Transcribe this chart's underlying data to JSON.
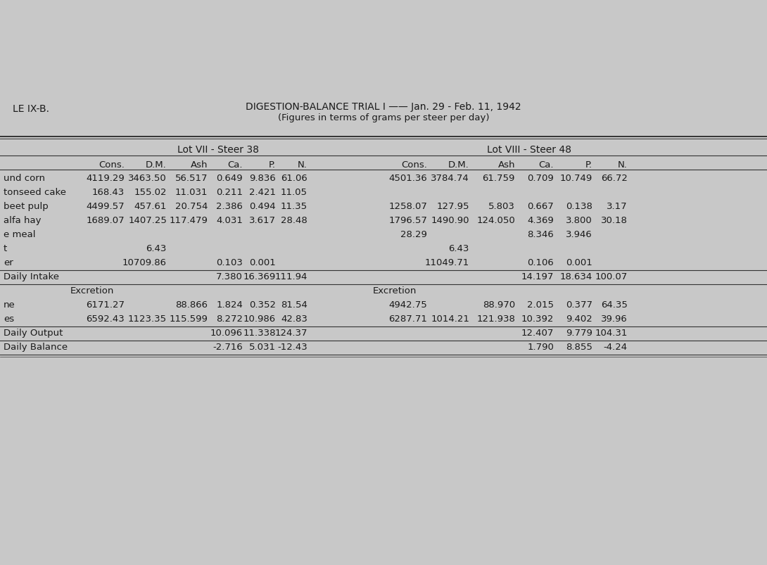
{
  "title_left": "LE IX-B.",
  "title_center": "DIGESTION-BALANCE TRIAL I —— Jan. 29 - Feb. 11, 1942",
  "title_sub": "(Figures in terms of grams per steer per day)",
  "lot7_header": "Lot VII - Steer 38",
  "lot8_header": "Lot VIII - Steer 48",
  "col_headers": [
    "Cons.",
    "D.M.",
    "Ash",
    "Ca.",
    "P.",
    "N."
  ],
  "bg_color": "#c8c8c8",
  "text_color": "#1a1a1a",
  "rows": [
    {
      "label": "und corn",
      "l7": [
        "4119.29",
        "3463.50",
        "56.517",
        "0.649",
        "9.836",
        "61.06"
      ],
      "l8": [
        "4501.36",
        "3784.74",
        "61.759",
        "0.709",
        "10.749",
        "66.72"
      ]
    },
    {
      "label": "tonseed cake",
      "l7": [
        "168.43",
        "155.02",
        "11.031",
        "0.211",
        "2.421",
        "11.05"
      ],
      "l8": [
        "",
        "",
        "",
        "",
        "",
        ""
      ]
    },
    {
      "label": "beet pulp",
      "l7": [
        "4499.57",
        "457.61",
        "20.754",
        "2.386",
        "0.494",
        "11.35"
      ],
      "l8": [
        "1258.07",
        "127.95",
        "5.803",
        "0.667",
        "0.138",
        "3.17"
      ]
    },
    {
      "label": "alfa hay",
      "l7": [
        "1689.07",
        "1407.25",
        "117.479",
        "4.031",
        "3.617",
        "28.48"
      ],
      "l8": [
        "1796.57",
        "1490.90",
        "124.050",
        "4.369",
        "3.800",
        "30.18"
      ]
    },
    {
      "label": "e meal",
      "l7": [
        "",
        "",
        "",
        "",
        "",
        ""
      ],
      "l8": [
        "28.29",
        "",
        "",
        "8.346",
        "3.946",
        ""
      ]
    },
    {
      "label": "t",
      "l7": [
        "",
        "6.43",
        "",
        "",
        "",
        ""
      ],
      "l8": [
        "",
        "6.43",
        "",
        "",
        "",
        ""
      ]
    },
    {
      "label": "er",
      "l7": [
        "",
        "10709.86",
        "",
        "0.103",
        "0.001",
        ""
      ],
      "l8": [
        "",
        "11049.71",
        "",
        "0.106",
        "0.001",
        ""
      ],
      "line_below": true
    },
    {
      "label": "Daily Intake",
      "l7": [
        "",
        "",
        "",
        "7.380",
        "16.369",
        "111.94"
      ],
      "l8": [
        "",
        "",
        "",
        "14.197",
        "18.634",
        "100.07"
      ],
      "line_below": true
    },
    {
      "label": "",
      "sublabel7": "Excretion",
      "sublabel8": "Excretion",
      "l7": [
        "",
        "",
        "",
        "",
        "",
        ""
      ],
      "l8": [
        "",
        "",
        "",
        "",
        "",
        ""
      ]
    },
    {
      "label": "ne",
      "l7": [
        "6171.27",
        "",
        "88.866",
        "1.824",
        "0.352",
        "81.54"
      ],
      "l8": [
        "4942.75",
        "",
        "88.970",
        "2.015",
        "0.377",
        "64.35"
      ]
    },
    {
      "label": "es",
      "l7": [
        "6592.43",
        "1123.35",
        "115.599",
        "8.272",
        "10.986",
        "42.83"
      ],
      "l8": [
        "6287.71",
        "1014.21",
        "121.938",
        "10.392",
        "9.402",
        "39.96"
      ],
      "line_below": true
    },
    {
      "label": "Daily Output",
      "l7": [
        "",
        "",
        "",
        "10.096",
        "11.338",
        "124.37"
      ],
      "l8": [
        "",
        "",
        "",
        "12.407",
        "9.779",
        "104.31"
      ],
      "line_below": true
    },
    {
      "label": "Daily Balance",
      "l7": [
        "",
        "",
        "",
        "-2.716",
        "5.031",
        "-12.43"
      ],
      "l8": [
        "",
        "",
        "",
        "1.790",
        "8.855",
        "-4.24"
      ],
      "line_below": true,
      "double_line": true
    }
  ]
}
